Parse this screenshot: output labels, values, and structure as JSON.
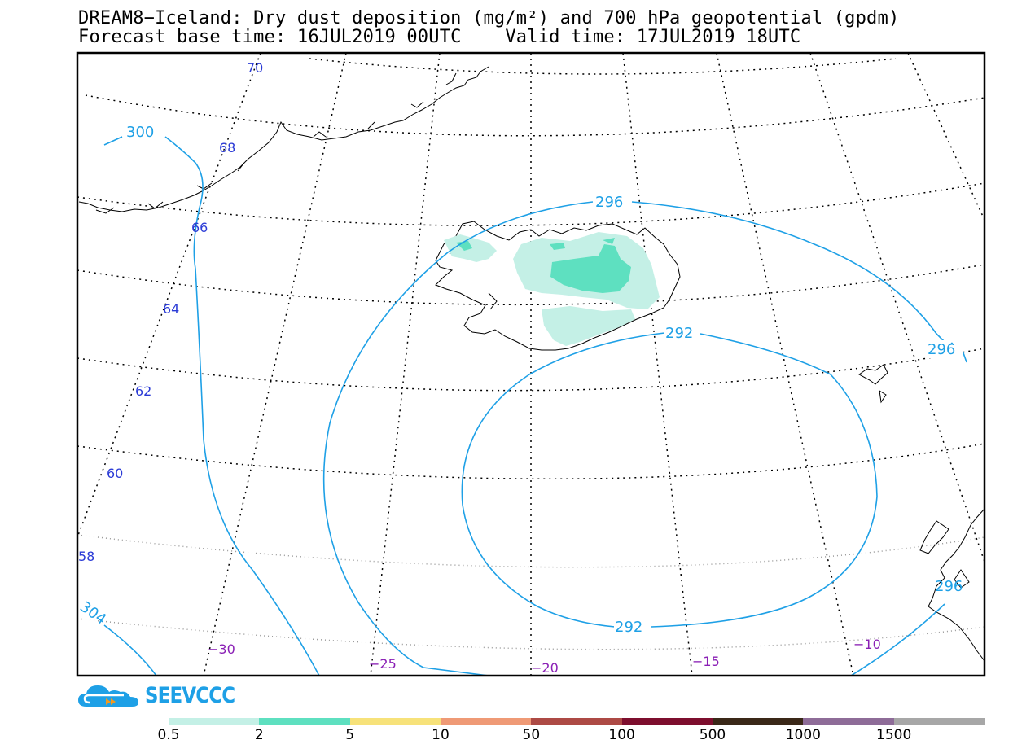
{
  "title": {
    "line1": "DREAM8−Iceland: Dry dust deposition (mg/m²) and 700 hPa geopotential (gpdm)",
    "line2": "Forecast base time: 16JUL2019 00UTC    Valid time: 17JUL2019 18UTC"
  },
  "latitude_labels": [
    "70",
    "68",
    "66",
    "64",
    "62",
    "60",
    "58"
  ],
  "longitude_labels": [
    "−30",
    "−25",
    "−20",
    "−15",
    "−10"
  ],
  "contour_labels": [
    "300",
    "296",
    "292",
    "292",
    "296̂",
    "296",
    "304"
  ],
  "logo": {
    "text": "SEEVCCC",
    "icon": "cloud-logo-icon"
  },
  "colorbar": {
    "colors": [
      "#c4f0e6",
      "#5ee0c0",
      "#f7e27a",
      "#ef9a76",
      "#ad4a45",
      "#7d0e2e",
      "#3a2818",
      "#8e6c98",
      "#a7a7a7"
    ],
    "labels": [
      "0.5",
      "2",
      "5",
      "10",
      "50",
      "100",
      "500",
      "1000",
      "1500"
    ]
  },
  "colors": {
    "contour": "#1ea0e6",
    "latitude_text": "#2b3bd6",
    "longitude_text": "#8a1fb5",
    "dust_light": "#c4f0e6",
    "dust_medium": "#5ee0c0"
  }
}
